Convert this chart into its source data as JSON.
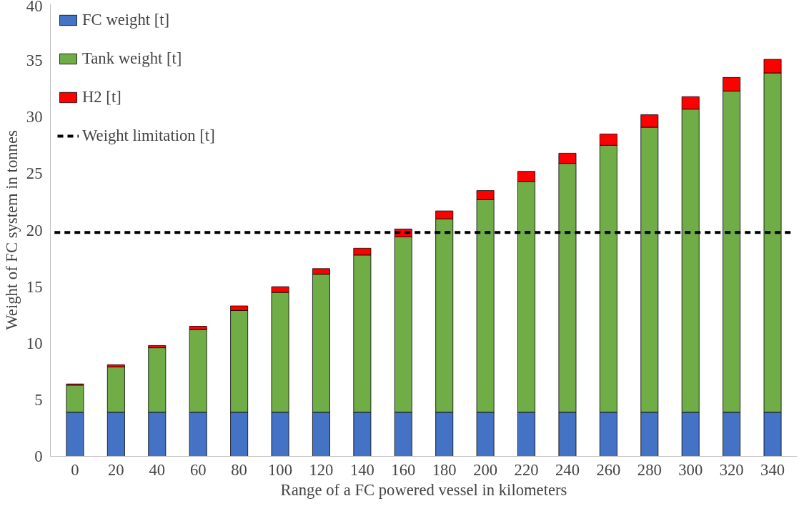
{
  "chart_data": {
    "type": "bar",
    "stacked": true,
    "xlabel": "Range of a FC powered vessel in kilometers",
    "ylabel": "Weight of FC system in tonnes",
    "categories": [
      "0",
      "20",
      "40",
      "60",
      "80",
      "100",
      "120",
      "140",
      "160",
      "180",
      "200",
      "220",
      "240",
      "260",
      "280",
      "300",
      "320",
      "340"
    ],
    "series": [
      {
        "name": "FC weight [t]",
        "color": "#4472c4",
        "values": [
          3.9,
          3.9,
          3.9,
          3.9,
          3.9,
          3.9,
          3.9,
          3.9,
          3.9,
          3.9,
          3.9,
          3.9,
          3.9,
          3.9,
          3.9,
          3.9,
          3.9,
          3.9
        ]
      },
      {
        "name": "Tank weight [t]",
        "color": "#70ad47",
        "values": [
          2.4,
          4.0,
          5.7,
          7.3,
          9.0,
          10.6,
          12.2,
          13.9,
          15.5,
          17.1,
          18.8,
          20.4,
          22.0,
          23.6,
          25.2,
          26.8,
          28.4,
          30.0
        ]
      },
      {
        "name": "H2 [t]",
        "color": "#ff0000",
        "values": [
          0.1,
          0.2,
          0.2,
          0.3,
          0.4,
          0.5,
          0.5,
          0.6,
          0.7,
          0.7,
          0.8,
          0.9,
          0.9,
          1.0,
          1.1,
          1.1,
          1.2,
          1.2
        ]
      }
    ],
    "ref_lines": [
      {
        "axis": "y",
        "value": 19.8,
        "label": "Weight limitation [t]",
        "color": "#000000",
        "line_style": "dashed"
      }
    ],
    "ylim": [
      0,
      40
    ],
    "yticks": [
      0,
      5,
      10,
      15,
      20,
      25,
      30,
      35,
      40
    ],
    "grid": false,
    "legend": "top left"
  }
}
